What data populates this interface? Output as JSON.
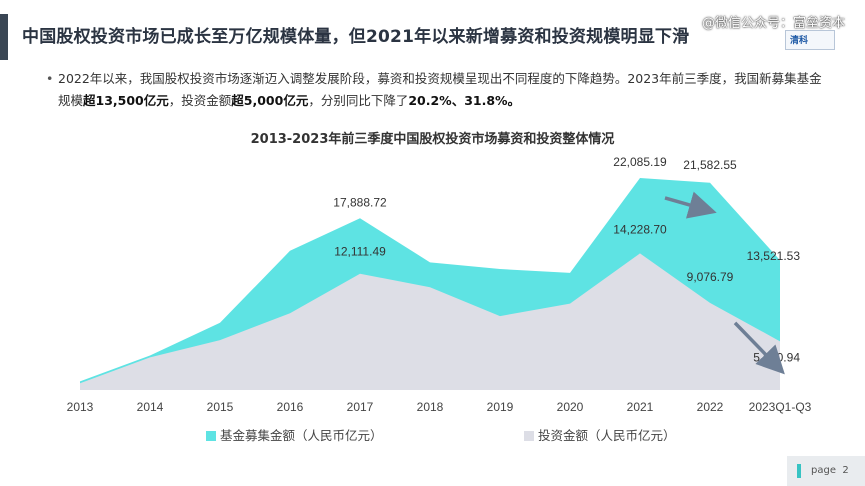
{
  "slide": {
    "title": "中国股权投资市场已成长至万亿规模体量，但2021年以来新增募资和投资规模明显下滑",
    "watermark": "@微信公众号：富垒资本",
    "logo_text": "清科",
    "bullet_parts": [
      {
        "text": "2022年以来，我国股权投资市场逐渐迈入调整发展阶段，募资和投资规模呈现出不同程度的下降趋势。2023年前三季度，我国新募集基金规模",
        "bold": false
      },
      {
        "text": "超13,500亿元",
        "bold": true
      },
      {
        "text": "，投资金额",
        "bold": false
      },
      {
        "text": "超5,000亿元",
        "bold": true
      },
      {
        "text": "，分别同比下降了",
        "bold": false
      },
      {
        "text": "20.2%、31.8%。",
        "bold": true
      }
    ],
    "page_label": "page",
    "page_number": "2"
  },
  "chart_data": {
    "type": "area",
    "title": "2013-2023年前三季度中国股权投资市场募资和投资整体情况",
    "categories": [
      "2013",
      "2014",
      "2015",
      "2016",
      "2017",
      "2018",
      "2019",
      "2020",
      "2021",
      "2022",
      "2023Q1-Q3"
    ],
    "series": [
      {
        "name": "基金募集金额（人民币亿元）",
        "color": "#5ee3e3",
        "values": [
          900,
          3600,
          7000,
          14500,
          17888.72,
          13300,
          12600,
          12200,
          22085.19,
          21582.55,
          13521.53
        ]
      },
      {
        "name": "投资金额（人民币亿元）",
        "color": "#dddee6",
        "values": [
          700,
          3400,
          5200,
          8000,
          12111.49,
          10700,
          7700,
          9000,
          14228.7,
          9076.79,
          5070.94
        ]
      }
    ],
    "data_labels": [
      {
        "series": 0,
        "index": 4,
        "text": "17,888.72"
      },
      {
        "series": 0,
        "index": 8,
        "text": "22,085.19"
      },
      {
        "series": 0,
        "index": 9,
        "text": "21,582.55"
      },
      {
        "series": 0,
        "index": 10,
        "text": "13,521.53"
      },
      {
        "series": 1,
        "index": 4,
        "text": "12,111.49"
      },
      {
        "series": 1,
        "index": 8,
        "text": "14,228.70"
      },
      {
        "series": 1,
        "index": 9,
        "text": "9,076.79"
      },
      {
        "series": 1,
        "index": 10,
        "text": "5,070.94"
      }
    ],
    "ylim": [
      0,
      25000
    ],
    "grid": false,
    "legend_position": "bottom",
    "trend_arrows": [
      {
        "series": 0,
        "from_index": 8,
        "to_index": 9
      },
      {
        "series": 1,
        "from_index": 9,
        "to_index": 10
      }
    ]
  }
}
